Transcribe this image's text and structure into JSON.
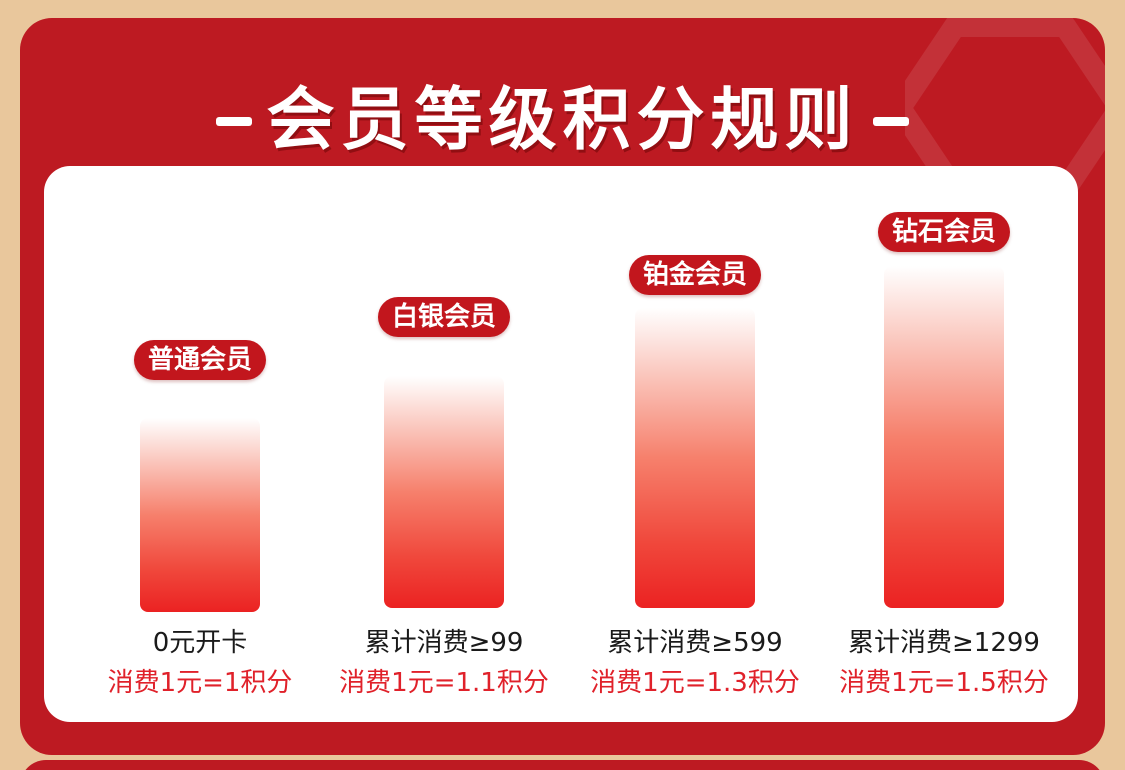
{
  "header": {
    "title": "会员等级积分规则"
  },
  "tiers": [
    {
      "name": "普通会员",
      "requirement": "0元开卡",
      "rate": "消费1元=1积分"
    },
    {
      "name": "白银会员",
      "requirement": "累计消费≥99",
      "rate": "消费1元=1.1积分"
    },
    {
      "name": "铂金会员",
      "requirement": "累计消费≥599",
      "rate": "消费1元=1.3积分"
    },
    {
      "name": "钻石会员",
      "requirement": "累计消费≥1299",
      "rate": "消费1元=1.5积分"
    }
  ],
  "colors": {
    "page_background": "#e9c79c",
    "card_red": "#bd1a22",
    "badge_red": "#c2161d",
    "rate_text": "#e0212a",
    "bar_bottom": "#eb2222"
  },
  "icons": {
    "decoration": "hexagon-outline-icon"
  }
}
